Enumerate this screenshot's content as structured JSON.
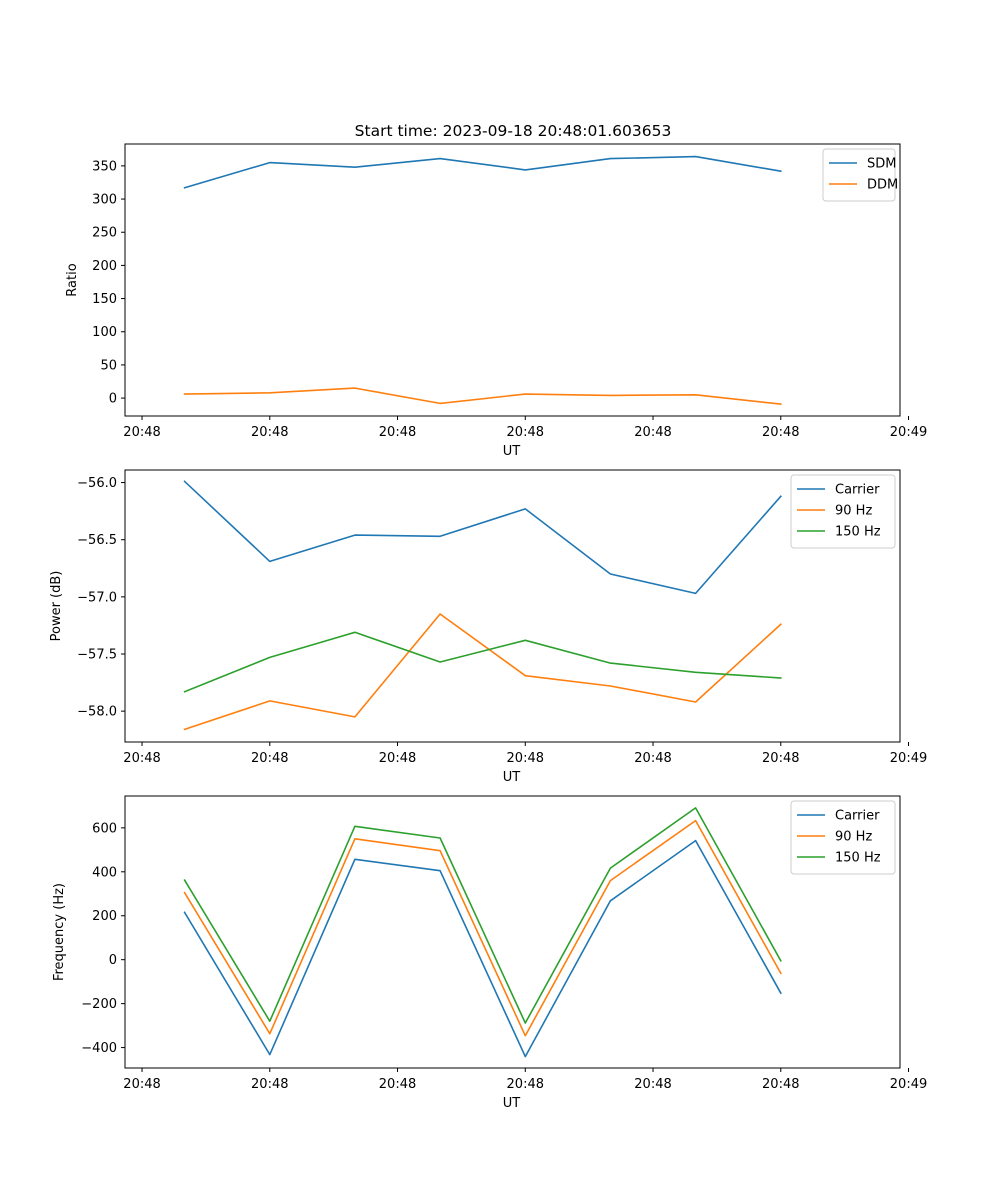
{
  "figure_title": "Start time: 2023-09-18 20:48:01.603653",
  "colors": {
    "blue": "#1f77b4",
    "orange": "#ff7f0e",
    "green": "#2ca02c"
  },
  "chart_data": [
    {
      "type": "line",
      "title": "Start time: 2023-09-18 20:48:01.603653",
      "xlabel": "UT",
      "ylabel": "Ratio",
      "xlim": [
        -0.7,
        8.4
      ],
      "ylim": [
        -27,
        383
      ],
      "x": [
        0,
        1,
        2,
        3,
        4,
        5,
        6,
        7
      ],
      "x_ticks": [
        -0.5,
        1,
        2.5,
        4,
        5.5,
        7,
        8.5
      ],
      "x_tick_labels": [
        "20:48",
        "20:48",
        "20:48",
        "20:48",
        "20:48",
        "20:48",
        "20:49"
      ],
      "y_ticks": [
        0,
        50,
        100,
        150,
        200,
        250,
        300,
        350
      ],
      "y_tick_labels": [
        "0",
        "50",
        "100",
        "150",
        "200",
        "250",
        "300",
        "350"
      ],
      "legend": "top-right",
      "series": [
        {
          "name": "SDM",
          "color": "#1f77b4",
          "values": [
            317,
            355,
            348,
            361,
            344,
            361,
            364,
            342
          ]
        },
        {
          "name": "DDM",
          "color": "#ff7f0e",
          "values": [
            6,
            8,
            15,
            -8,
            6,
            4,
            5,
            -9
          ]
        }
      ]
    },
    {
      "type": "line",
      "xlabel": "UT",
      "ylabel": "Power (dB)",
      "xlim": [
        -0.7,
        8.4
      ],
      "ylim": [
        -58.27,
        -55.89
      ],
      "x": [
        0,
        1,
        2,
        3,
        4,
        5,
        6,
        7
      ],
      "x_ticks": [
        -0.5,
        1,
        2.5,
        4,
        5.5,
        7,
        8.5
      ],
      "x_tick_labels": [
        "20:48",
        "20:48",
        "20:48",
        "20:48",
        "20:48",
        "20:48",
        "20:49"
      ],
      "y_ticks": [
        -58.0,
        -57.5,
        -57.0,
        -56.5,
        -56.0
      ],
      "y_tick_labels": [
        "−58.0",
        "−57.5",
        "−57.0",
        "−56.5",
        "−56.0"
      ],
      "legend": "top-right",
      "series": [
        {
          "name": "Carrier",
          "color": "#1f77b4",
          "values": [
            -55.99,
            -56.69,
            -56.46,
            -56.47,
            -56.23,
            -56.8,
            -56.97,
            -56.12
          ]
        },
        {
          "name": "90 Hz",
          "color": "#ff7f0e",
          "values": [
            -58.16,
            -57.91,
            -58.05,
            -57.15,
            -57.69,
            -57.78,
            -57.92,
            -57.24
          ]
        },
        {
          "name": "150 Hz",
          "color": "#2ca02c",
          "values": [
            -57.83,
            -57.53,
            -57.31,
            -57.57,
            -57.38,
            -57.58,
            -57.66,
            -57.71
          ]
        }
      ]
    },
    {
      "type": "line",
      "xlabel": "UT",
      "ylabel": "Frequency (Hz)",
      "xlim": [
        -0.7,
        8.4
      ],
      "ylim": [
        -493,
        745
      ],
      "x": [
        0,
        1,
        2,
        3,
        4,
        5,
        6,
        7
      ],
      "x_ticks": [
        -0.5,
        1,
        2.5,
        4,
        5.5,
        7,
        8.5
      ],
      "x_tick_labels": [
        "20:48",
        "20:48",
        "20:48",
        "20:48",
        "20:48",
        "20:48",
        "20:49"
      ],
      "y_ticks": [
        -400,
        -200,
        0,
        200,
        400,
        600
      ],
      "y_tick_labels": [
        "−400",
        "−200",
        "0",
        "200",
        "400",
        "600"
      ],
      "legend": "top-right",
      "series": [
        {
          "name": "Carrier",
          "color": "#1f77b4",
          "values": [
            215,
            -432,
            457,
            405,
            -441,
            268,
            542,
            -152
          ]
        },
        {
          "name": "90 Hz",
          "color": "#ff7f0e",
          "values": [
            305,
            -337,
            550,
            496,
            -346,
            360,
            633,
            -62
          ]
        },
        {
          "name": "150 Hz",
          "color": "#2ca02c",
          "values": [
            362,
            -280,
            607,
            554,
            -288,
            417,
            691,
            -5
          ]
        }
      ]
    }
  ]
}
